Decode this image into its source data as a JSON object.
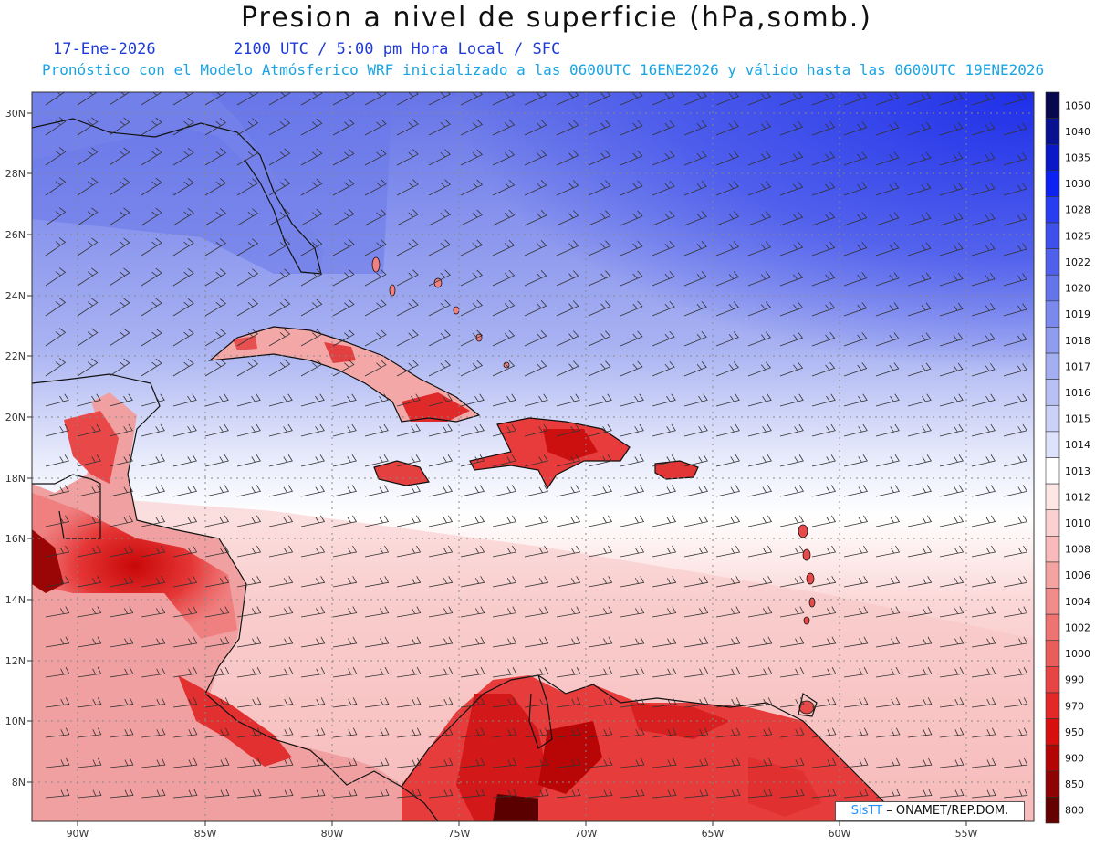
{
  "header": {
    "title": "Presion a nivel de superficie (hPa,somb.)",
    "date": "17-Ene-2026",
    "time": "2100 UTC / 5:00 pm Hora Local / SFC",
    "model_note": "Pronóstico con el Modelo Atmósferico WRF inicializado a las 0600UTC_16ENE2026 y válido hasta las  0600UTC_19ENE2026"
  },
  "map": {
    "lat_labels": [
      "30N",
      "28N",
      "26N",
      "24N",
      "22N",
      "20N",
      "18N",
      "16N",
      "14N",
      "12N",
      "10N",
      "8N"
    ],
    "lon_labels": [
      "90W",
      "85W",
      "80W",
      "75W",
      "70W",
      "65W",
      "60W",
      "55W"
    ]
  },
  "legend": {
    "levels": [
      "1050",
      "1040",
      "1035",
      "1030",
      "1028",
      "1025",
      "1022",
      "1020",
      "1019",
      "1018",
      "1017",
      "1016",
      "1015",
      "1014",
      "1013",
      "1012",
      "1010",
      "1008",
      "1006",
      "1004",
      "1002",
      "1000",
      "990",
      "970",
      "950",
      "900",
      "850",
      "800"
    ],
    "colors": [
      "#07084e",
      "#0a1190",
      "#0b18c8",
      "#0c22f2",
      "#2a3cf0",
      "#3e4fec",
      "#5060ea",
      "#6574ea",
      "#7b89ec",
      "#909dee",
      "#a4aff2",
      "#b8c0f4",
      "#cbd1f7",
      "#dee2fa",
      "#ffffff",
      "#fde6e6",
      "#fbd0d0",
      "#f8baba",
      "#f4a3a3",
      "#f18c8c",
      "#ee7474",
      "#ea5d5d",
      "#e74444",
      "#e32828",
      "#d80f0f",
      "#b40505",
      "#8e0303",
      "#640101"
    ]
  },
  "credit": {
    "brand": "SisTT",
    "org": "– ONAMET/REP.DOM."
  }
}
